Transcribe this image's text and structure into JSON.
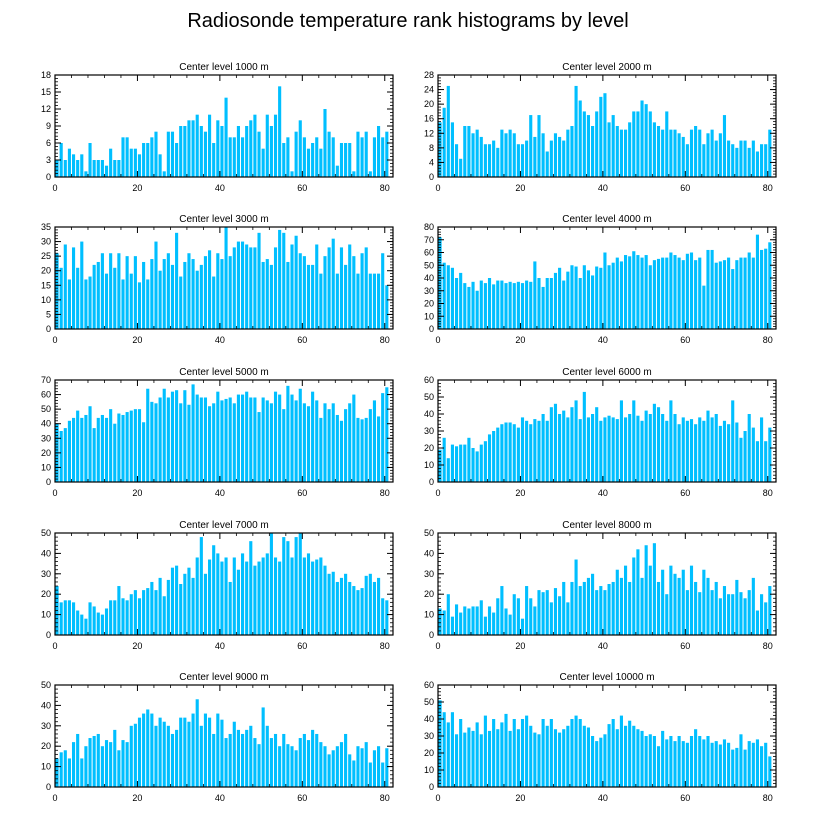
{
  "title": "Radiosonde temperature rank histograms by level",
  "bar_color": "#00bfff",
  "chart_data": [
    {
      "type": "bar",
      "title": "Center level 1000 m",
      "xlim": [
        0,
        82
      ],
      "ylim": [
        0,
        18
      ],
      "xticks": [
        0,
        20,
        40,
        60,
        80
      ],
      "yticks": [
        0,
        3,
        6,
        9,
        12,
        15,
        18
      ],
      "values": [
        3,
        6,
        3,
        5,
        4,
        3,
        4,
        1,
        6,
        3,
        3,
        3,
        2,
        5,
        3,
        3,
        7,
        7,
        5,
        5,
        4,
        6,
        6,
        7,
        8,
        4,
        1,
        8,
        8,
        6,
        9,
        9,
        10,
        10,
        11,
        9,
        8,
        11,
        6,
        10,
        9,
        14,
        7,
        7,
        9,
        7,
        9,
        10,
        11,
        8,
        5,
        11,
        9,
        11,
        16,
        6,
        7,
        1,
        8,
        10,
        7,
        5,
        6,
        7,
        5,
        12,
        8,
        7,
        2,
        6,
        6,
        6,
        1,
        8,
        7,
        8,
        1,
        7,
        9,
        7,
        8
      ]
    },
    {
      "type": "bar",
      "title": "Center level 2000 m",
      "xlim": [
        0,
        82
      ],
      "ylim": [
        0,
        28
      ],
      "xticks": [
        0,
        20,
        40,
        60,
        80
      ],
      "yticks": [
        0,
        4,
        8,
        12,
        16,
        20,
        24,
        28
      ],
      "values": [
        15,
        19,
        25,
        15,
        9,
        5,
        14,
        14,
        12,
        13,
        11,
        9,
        9,
        10,
        8,
        13,
        12,
        13,
        12,
        9,
        9,
        10,
        17,
        11,
        17,
        12,
        7,
        10,
        12,
        11,
        10,
        13,
        14,
        25,
        21,
        18,
        17,
        14,
        18,
        22,
        23,
        15,
        17,
        14,
        13,
        13,
        15,
        18,
        18,
        21,
        20,
        18,
        15,
        14,
        13,
        18,
        13,
        13,
        12,
        11,
        9,
        13,
        14,
        13,
        9,
        12,
        13,
        10,
        12,
        17,
        10,
        9,
        8,
        10,
        10,
        8,
        10,
        7,
        9,
        9,
        13
      ]
    },
    {
      "type": "bar",
      "title": "Center level 3000 m",
      "xlim": [
        0,
        82
      ],
      "ylim": [
        0,
        35
      ],
      "xticks": [
        0,
        20,
        40,
        60,
        80
      ],
      "yticks": [
        0,
        5,
        10,
        15,
        20,
        25,
        30,
        35
      ],
      "values": [
        26,
        21,
        29,
        17,
        28,
        21,
        30,
        17,
        18,
        22,
        23,
        26,
        19,
        26,
        21,
        26,
        17,
        25,
        19,
        25,
        16,
        23,
        17,
        24,
        30,
        20,
        24,
        26,
        22,
        33,
        18,
        23,
        26,
        24,
        20,
        22,
        25,
        27,
        18,
        26,
        24,
        35,
        25,
        28,
        30,
        30,
        29,
        28,
        28,
        33,
        23,
        24,
        22,
        28,
        34,
        33,
        23,
        29,
        32,
        26,
        25,
        22,
        22,
        29,
        19,
        25,
        28,
        31,
        19,
        28,
        22,
        29,
        25,
        19,
        26,
        28,
        19,
        19,
        19,
        26,
        15
      ]
    },
    {
      "type": "bar",
      "title": "Center level 4000 m",
      "xlim": [
        0,
        82
      ],
      "ylim": [
        0,
        80
      ],
      "xticks": [
        0,
        20,
        40,
        60,
        80
      ],
      "yticks": [
        0,
        10,
        20,
        30,
        40,
        50,
        60,
        70,
        80
      ],
      "values": [
        72,
        52,
        50,
        48,
        40,
        44,
        36,
        33,
        37,
        30,
        38,
        36,
        40,
        35,
        38,
        38,
        36,
        37,
        36,
        37,
        36,
        38,
        37,
        53,
        40,
        33,
        40,
        40,
        44,
        48,
        38,
        45,
        50,
        49,
        40,
        50,
        46,
        42,
        49,
        48,
        60,
        50,
        52,
        56,
        53,
        58,
        57,
        61,
        58,
        56,
        58,
        50,
        54,
        55,
        56,
        56,
        60,
        58,
        56,
        54,
        59,
        60,
        54,
        56,
        34,
        62,
        62,
        52,
        53,
        54,
        56,
        47,
        54,
        56,
        56,
        60,
        56,
        74,
        62,
        63,
        68
      ]
    },
    {
      "type": "bar",
      "title": "Center level 5000 m",
      "xlim": [
        0,
        82
      ],
      "ylim": [
        0,
        70
      ],
      "xticks": [
        0,
        20,
        40,
        60,
        80
      ],
      "yticks": [
        0,
        10,
        20,
        30,
        40,
        50,
        60,
        70
      ],
      "values": [
        40,
        35,
        37,
        42,
        44,
        49,
        44,
        46,
        52,
        37,
        44,
        46,
        44,
        50,
        40,
        47,
        46,
        48,
        49,
        50,
        50,
        41,
        64,
        55,
        54,
        58,
        64,
        58,
        62,
        63,
        54,
        63,
        53,
        67,
        60,
        58,
        58,
        52,
        54,
        62,
        56,
        57,
        58,
        54,
        60,
        60,
        62,
        58,
        58,
        48,
        58,
        56,
        54,
        62,
        60,
        50,
        66,
        60,
        56,
        64,
        54,
        52,
        62,
        56,
        44,
        54,
        50,
        54,
        46,
        42,
        50,
        54,
        60,
        44,
        43,
        44,
        50,
        56,
        45,
        61,
        65
      ]
    },
    {
      "type": "bar",
      "title": "Center level 6000 m",
      "xlim": [
        0,
        82
      ],
      "ylim": [
        0,
        60
      ],
      "xticks": [
        0,
        20,
        40,
        60,
        80
      ],
      "yticks": [
        0,
        10,
        20,
        30,
        40,
        50,
        60
      ],
      "values": [
        19,
        26,
        14,
        22,
        21,
        22,
        22,
        26,
        20,
        18,
        22,
        24,
        28,
        30,
        32,
        34,
        35,
        35,
        34,
        32,
        38,
        36,
        34,
        37,
        36,
        40,
        36,
        44,
        46,
        40,
        42,
        38,
        44,
        48,
        37,
        53,
        38,
        40,
        44,
        36,
        38,
        39,
        38,
        37,
        48,
        38,
        40,
        48,
        39,
        36,
        42,
        40,
        46,
        44,
        40,
        36,
        48,
        40,
        34,
        38,
        36,
        37,
        34,
        38,
        36,
        42,
        38,
        40,
        33,
        36,
        34,
        48,
        35,
        26,
        30,
        40,
        32,
        24,
        38,
        24,
        32
      ]
    },
    {
      "type": "bar",
      "title": "Center level 7000 m",
      "xlim": [
        0,
        82
      ],
      "ylim": [
        0,
        50
      ],
      "xticks": [
        0,
        20,
        40,
        60,
        80
      ],
      "yticks": [
        0,
        10,
        20,
        30,
        40,
        50
      ],
      "values": [
        24,
        16,
        17,
        17,
        16,
        12,
        10,
        8,
        16,
        14,
        11,
        10,
        13,
        17,
        17,
        24,
        18,
        17,
        20,
        22,
        18,
        22,
        23,
        26,
        22,
        28,
        19,
        27,
        33,
        34,
        25,
        30,
        33,
        28,
        38,
        48,
        30,
        37,
        44,
        40,
        36,
        38,
        26,
        38,
        32,
        40,
        36,
        46,
        34,
        36,
        38,
        40,
        50,
        38,
        36,
        48,
        46,
        38,
        48,
        50,
        38,
        40,
        36,
        37,
        38,
        34,
        30,
        31,
        26,
        28,
        30,
        26,
        24,
        22,
        23,
        29,
        30,
        26,
        28,
        18,
        17
      ]
    },
    {
      "type": "bar",
      "title": "Center level 8000 m",
      "xlim": [
        0,
        82
      ],
      "ylim": [
        0,
        50
      ],
      "xticks": [
        0,
        20,
        40,
        60,
        80
      ],
      "yticks": [
        0,
        10,
        20,
        30,
        40,
        50
      ],
      "values": [
        13,
        12,
        20,
        9,
        15,
        11,
        14,
        13,
        14,
        14,
        17,
        9,
        14,
        11,
        18,
        24,
        13,
        10,
        20,
        18,
        8,
        24,
        18,
        14,
        22,
        21,
        22,
        16,
        23,
        19,
        26,
        16,
        26,
        37,
        24,
        26,
        28,
        30,
        22,
        24,
        22,
        25,
        26,
        32,
        28,
        34,
        26,
        38,
        42,
        28,
        44,
        34,
        45,
        26,
        32,
        20,
        34,
        30,
        28,
        32,
        22,
        34,
        26,
        21,
        32,
        28,
        22,
        26,
        18,
        24,
        20,
        20,
        27,
        21,
        18,
        22,
        28,
        12,
        20,
        16,
        24
      ]
    },
    {
      "type": "bar",
      "title": "Center level 9000 m",
      "xlim": [
        0,
        82
      ],
      "ylim": [
        0,
        50
      ],
      "xticks": [
        0,
        20,
        40,
        60,
        80
      ],
      "yticks": [
        0,
        10,
        20,
        30,
        40,
        50
      ],
      "values": [
        14,
        17,
        18,
        14,
        22,
        26,
        14,
        20,
        24,
        25,
        26,
        20,
        23,
        22,
        28,
        18,
        23,
        22,
        30,
        31,
        34,
        36,
        38,
        36,
        30,
        34,
        32,
        30,
        26,
        28,
        34,
        34,
        32,
        36,
        43,
        30,
        36,
        34,
        26,
        36,
        33,
        24,
        26,
        32,
        28,
        26,
        28,
        30,
        24,
        21,
        39,
        30,
        24,
        26,
        20,
        26,
        21,
        20,
        18,
        24,
        26,
        23,
        28,
        26,
        22,
        20,
        16,
        18,
        20,
        22,
        26,
        16,
        13,
        20,
        19,
        22,
        12,
        18,
        20,
        12,
        19
      ]
    },
    {
      "type": "bar",
      "title": "Center level 10000 m",
      "xlim": [
        0,
        82
      ],
      "ylim": [
        0,
        60
      ],
      "xticks": [
        0,
        20,
        40,
        60,
        80
      ],
      "yticks": [
        0,
        10,
        20,
        30,
        40,
        50,
        60
      ],
      "values": [
        51,
        44,
        38,
        44,
        31,
        40,
        32,
        35,
        33,
        38,
        31,
        42,
        33,
        40,
        34,
        38,
        43,
        33,
        40,
        34,
        40,
        42,
        36,
        32,
        31,
        40,
        36,
        40,
        34,
        32,
        34,
        36,
        40,
        42,
        40,
        36,
        35,
        30,
        27,
        29,
        31,
        37,
        40,
        34,
        42,
        36,
        39,
        36,
        34,
        33,
        30,
        31,
        30,
        24,
        33,
        28,
        30,
        27,
        30,
        27,
        26,
        30,
        34,
        30,
        28,
        30,
        26,
        27,
        25,
        28,
        26,
        22,
        23,
        31,
        22,
        27,
        26,
        28,
        24,
        26,
        18
      ]
    }
  ]
}
